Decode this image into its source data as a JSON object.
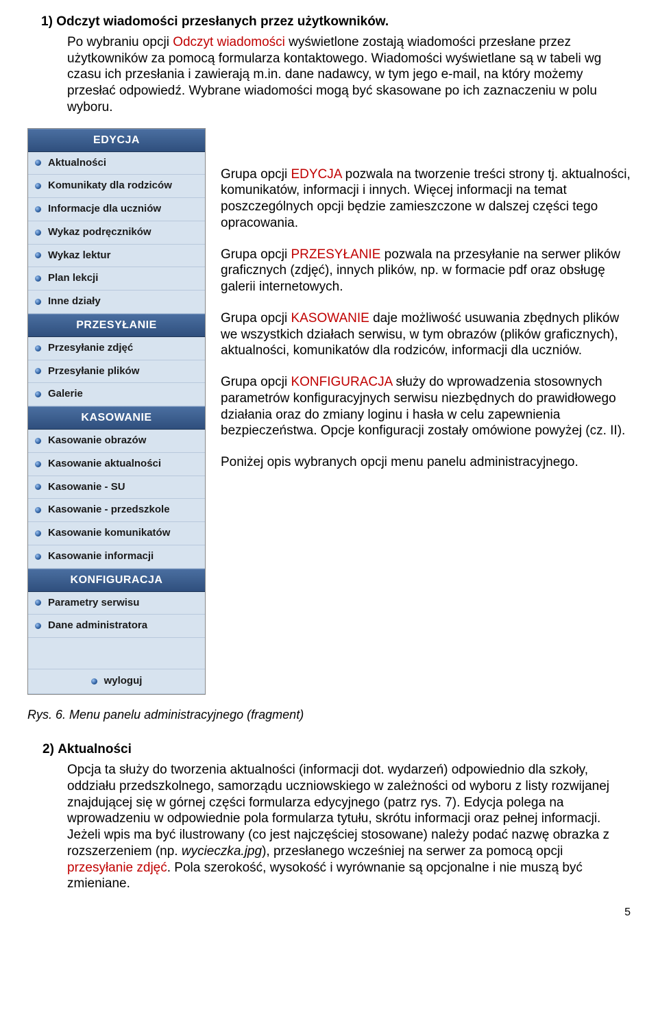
{
  "colors": {
    "accent_red": "#c00000",
    "menu_bg": "#d7e3ef",
    "menu_header_grad_top": "#4a6ea0",
    "menu_header_grad_bottom": "#2f4f7d",
    "menu_item_border": "#b8c8dc",
    "text": "#000000",
    "white": "#ffffff"
  },
  "section1": {
    "number": "1)",
    "title": "Odczyt wiadomości przesłanych przez użytkowników.",
    "para_pre": "Po wybraniu opcji ",
    "para_red": "Odczyt wiadomości",
    "para_post": " wyświetlone zostają wiadomości przesłane przez użytkowników za pomocą formularza kontaktowego. Wiadomości wyświetlane są w tabeli wg czasu ich przesłania i zawierają m.in. dane nadawcy, w tym jego e-mail, na który możemy przesłać odpowiedź. Wybrane wiadomości mogą być skasowane po ich zaznaczeniu w polu wyboru."
  },
  "menu": {
    "groups": [
      {
        "header": "EDYCJA",
        "items": [
          "Aktualności",
          "Komunikaty dla rodziców",
          "Informacje dla uczniów",
          "Wykaz podręczników",
          "Wykaz lektur",
          "Plan lekcji",
          "Inne działy"
        ]
      },
      {
        "header": "PRZESYŁANIE",
        "items": [
          "Przesyłanie zdjęć",
          "Przesyłanie plików",
          "Galerie"
        ]
      },
      {
        "header": "KASOWANIE",
        "items": [
          "Kasowanie obrazów",
          "Kasowanie aktualności",
          "Kasowanie - SU",
          "Kasowanie - przedszkole",
          "Kasowanie komunikatów",
          "Kasowanie informacji"
        ]
      },
      {
        "header": "KONFIGURACJA",
        "items": [
          "Parametry serwisu",
          "Dane administratora"
        ]
      }
    ],
    "logout": "wyloguj"
  },
  "desc": {
    "b1_pre": "Grupa opcji ",
    "b1_red": "EDYCJA",
    "b1_post": " pozwala na tworzenie treści strony tj. aktualności, komunikatów, informacji i innych. Więcej informacji na temat poszczególnych opcji będzie zamieszczone w dalszej części tego opracowania.",
    "b2_pre": "Grupa opcji ",
    "b2_red": "PRZESYŁANIE",
    "b2_post": " pozwala na przesyłanie na serwer plików graficznych (zdjęć), innych plików, np. w formacie pdf oraz obsługę galerii internetowych.",
    "b3_pre": "Grupa opcji ",
    "b3_red": "KASOWANIE",
    "b3_post": " daje możliwość usuwania zbędnych plików we wszystkich działach serwisu, w tym obrazów (plików graficznych), aktualności, komunikatów dla rodziców, informacji dla uczniów.",
    "b4_pre": "Grupa opcji ",
    "b4_red": "KONFIGURACJA",
    "b4_post": " służy do wprowadzenia stosownych parametrów konfiguracyjnych serwisu niezbędnych do prawidłowego działania oraz do zmiany loginu i hasła w celu zapewnienia bezpieczeństwa. Opcje konfiguracji zostały omówione powyżej (cz. II).",
    "b5": "Poniżej opis wybranych opcji menu panelu administracyjnego."
  },
  "caption": "Rys. 6.  Menu panelu administracyjnego (fragment)",
  "section2": {
    "number": "2)",
    "title": "Aktualności",
    "body_a": "Opcja ta służy do tworzenia aktualności (informacji dot. wydarzeń) odpowiednio dla szkoły, oddziału przedszkolnego, samorządu uczniowskiego w zależności od wyboru z listy rozwijanej znajdującej się w górnej części formularza edycyjnego (patrz rys. 7). Edycja polega na wprowadzeniu w odpowiednie pola formularza tytułu, skrótu informacji oraz pełnej informacji. Jeżeli wpis ma być ilustrowany (co jest najczęściej stosowane) należy podać nazwę obrazka z rozszerzeniem (np. ",
    "body_filename": "wycieczka.jpg",
    "body_b": "), przesłanego wcześniej na serwer za pomocą opcji ",
    "body_red": "przesyłanie zdjęć",
    "body_c": ". Pola szerokość, wysokość i wyrównanie są opcjonalne i nie muszą być zmieniane."
  },
  "page_number": "5"
}
